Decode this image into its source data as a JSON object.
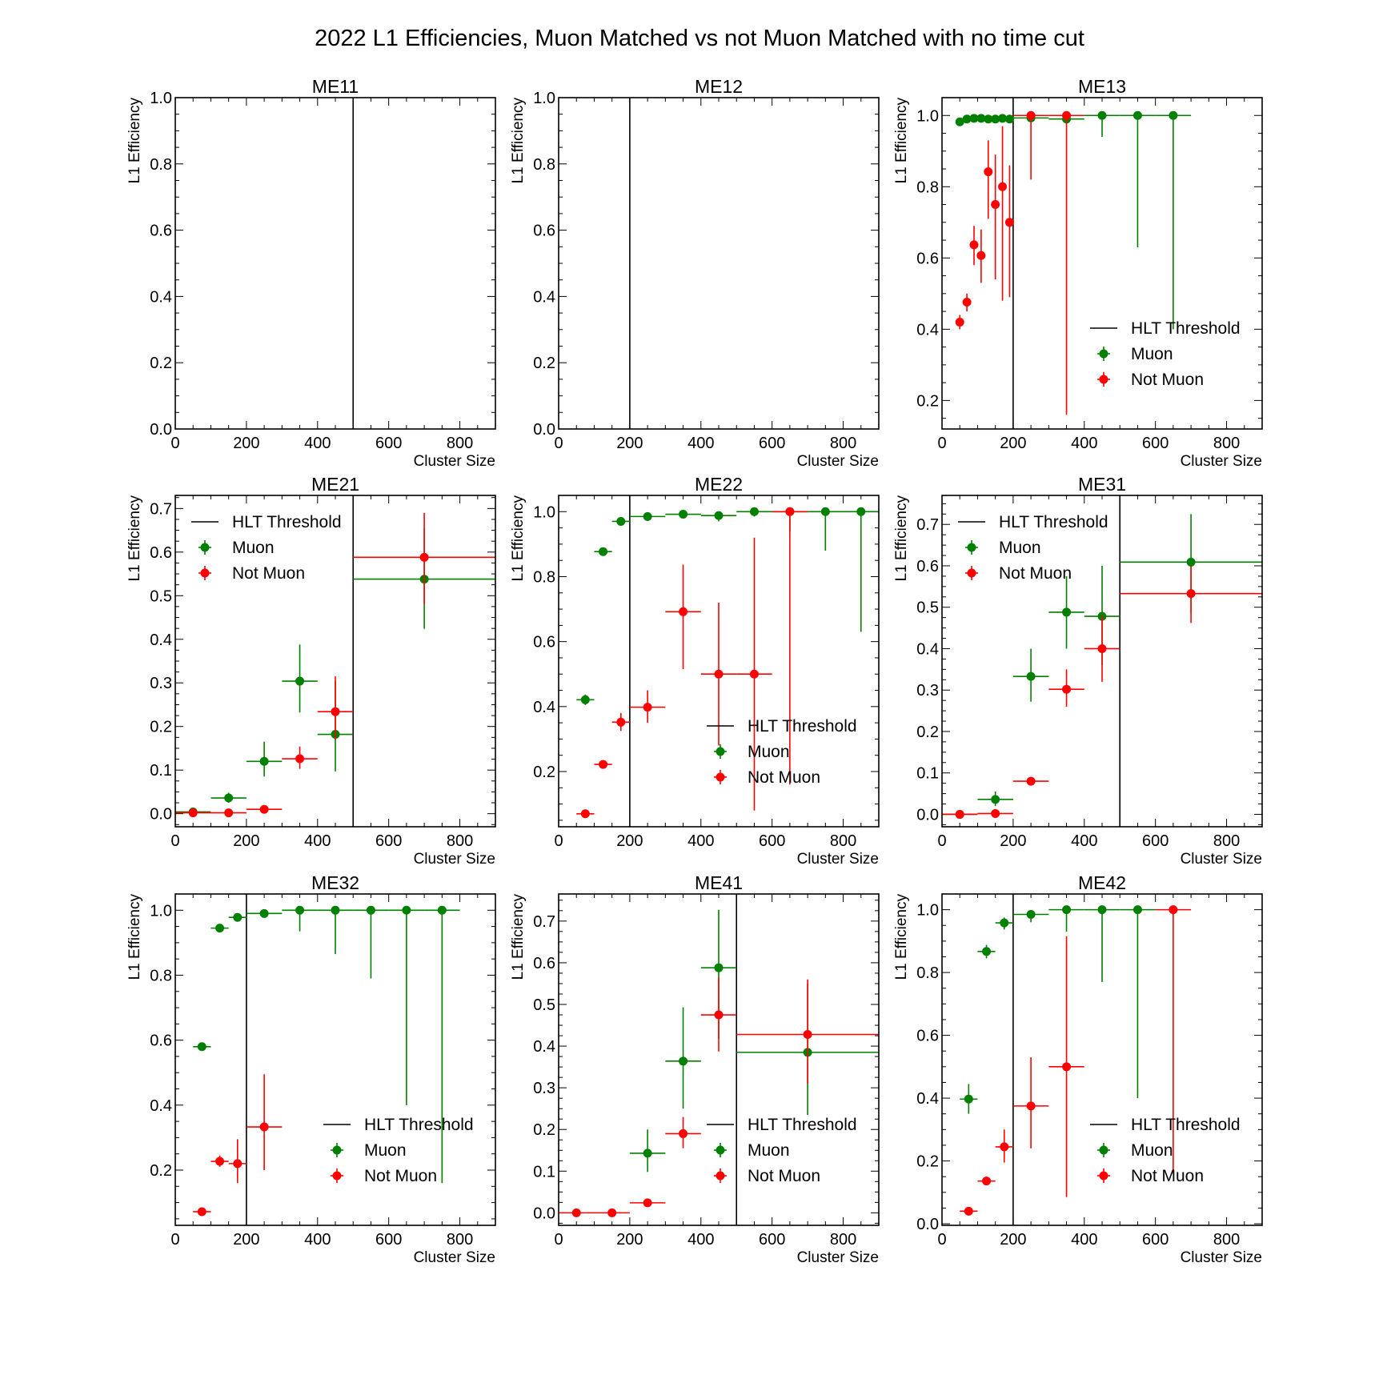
{
  "colors": {
    "muon": "#008000",
    "not_muon": "#ff0000",
    "threshold": "#000000"
  },
  "chart_data": {
    "type": "scatter",
    "title": "2022 L1 Efficiencies, Muon Matched vs not Muon Matched with no time cut",
    "xlabel": "Cluster Size",
    "ylabel": "L1 Efficiency",
    "legend": [
      "HLT Threshold",
      "Muon",
      "Not Muon"
    ],
    "panels": [
      {
        "title": "ME11",
        "threshold": 500,
        "xlim": [
          0,
          900
        ],
        "ylim": [
          0,
          1.0
        ],
        "yticks": [
          "0.0",
          "0.2",
          "0.4",
          "0.6",
          "0.8",
          "1.0"
        ],
        "xticks": [
          "0",
          "200",
          "400",
          "600",
          "800"
        ],
        "legend_loc": "none",
        "muon": [],
        "not_muon": []
      },
      {
        "title": "ME12",
        "threshold": 200,
        "xlim": [
          0,
          900
        ],
        "ylim": [
          0,
          1.0
        ],
        "yticks": [
          "0.0",
          "0.2",
          "0.4",
          "0.6",
          "0.8",
          "1.0"
        ],
        "xticks": [
          "0",
          "200",
          "400",
          "600",
          "800"
        ],
        "legend_loc": "none",
        "muon": [],
        "not_muon": []
      },
      {
        "title": "ME13",
        "threshold": 200,
        "xlim": [
          0,
          900
        ],
        "ylim": [
          0.12,
          1.05
        ],
        "yticks": [
          "0.2",
          "0.4",
          "0.6",
          "0.8",
          "1.0"
        ],
        "xticks": [
          "0",
          "200",
          "400",
          "600",
          "800"
        ],
        "legend_loc": "lower right",
        "muon": [
          {
            "x": 50,
            "xerr": 5,
            "y": 0.982,
            "ylo": 0.975,
            "yhi": 0.988
          },
          {
            "x": 70,
            "xerr": 5,
            "y": 0.99,
            "ylo": 0.985,
            "yhi": 0.994
          },
          {
            "x": 90,
            "xerr": 5,
            "y": 0.992,
            "ylo": 0.987,
            "yhi": 0.996
          },
          {
            "x": 110,
            "xerr": 5,
            "y": 0.992,
            "ylo": 0.986,
            "yhi": 0.996
          },
          {
            "x": 130,
            "xerr": 5,
            "y": 0.99,
            "ylo": 0.984,
            "yhi": 0.995
          },
          {
            "x": 150,
            "xerr": 5,
            "y": 0.99,
            "ylo": 0.983,
            "yhi": 0.995
          },
          {
            "x": 170,
            "xerr": 5,
            "y": 0.992,
            "ylo": 0.985,
            "yhi": 0.996
          },
          {
            "x": 190,
            "xerr": 5,
            "y": 0.99,
            "ylo": 0.982,
            "yhi": 0.995
          },
          {
            "x": 250,
            "xerr": 50,
            "y": 0.993,
            "ylo": 0.985,
            "yhi": 0.997
          },
          {
            "x": 350,
            "xerr": 50,
            "y": 0.99,
            "ylo": 0.975,
            "yhi": 0.996
          },
          {
            "x": 450,
            "xerr": 50,
            "y": 1.0,
            "ylo": 0.94,
            "yhi": 1.0
          },
          {
            "x": 550,
            "xerr": 50,
            "y": 1.0,
            "ylo": 0.63,
            "yhi": 1.0
          },
          {
            "x": 650,
            "xerr": 50,
            "y": 1.0,
            "ylo": 0.4,
            "yhi": 1.0
          }
        ],
        "not_muon": [
          {
            "x": 50,
            "xerr": 5,
            "y": 0.42,
            "ylo": 0.4,
            "yhi": 0.44
          },
          {
            "x": 70,
            "xerr": 5,
            "y": 0.476,
            "ylo": 0.45,
            "yhi": 0.5
          },
          {
            "x": 90,
            "xerr": 5,
            "y": 0.637,
            "ylo": 0.58,
            "yhi": 0.69
          },
          {
            "x": 110,
            "xerr": 5,
            "y": 0.607,
            "ylo": 0.53,
            "yhi": 0.68
          },
          {
            "x": 130,
            "xerr": 5,
            "y": 0.842,
            "ylo": 0.71,
            "yhi": 0.93
          },
          {
            "x": 150,
            "xerr": 5,
            "y": 0.75,
            "ylo": 0.54,
            "yhi": 0.89
          },
          {
            "x": 170,
            "xerr": 5,
            "y": 0.8,
            "ylo": 0.48,
            "yhi": 0.97
          },
          {
            "x": 190,
            "xerr": 5,
            "y": 0.7,
            "ylo": 0.49,
            "yhi": 0.86
          },
          {
            "x": 250,
            "xerr": 50,
            "y": 1.0,
            "ylo": 0.82,
            "yhi": 1.0
          },
          {
            "x": 350,
            "xerr": 50,
            "y": 1.0,
            "ylo": 0.16,
            "yhi": 1.0
          }
        ]
      },
      {
        "title": "ME21",
        "threshold": 500,
        "xlim": [
          0,
          900
        ],
        "ylim": [
          -0.03,
          0.73
        ],
        "yticks": [
          "0.0",
          "0.1",
          "0.2",
          "0.3",
          "0.4",
          "0.5",
          "0.6",
          "0.7"
        ],
        "xticks": [
          "0",
          "200",
          "400",
          "600",
          "800"
        ],
        "legend_loc": "upper left",
        "muon": [
          {
            "x": 50,
            "xerr": 50,
            "y": 0.004,
            "ylo": 0.001,
            "yhi": 0.008
          },
          {
            "x": 150,
            "xerr": 50,
            "y": 0.036,
            "ylo": 0.025,
            "yhi": 0.048
          },
          {
            "x": 250,
            "xerr": 50,
            "y": 0.12,
            "ylo": 0.085,
            "yhi": 0.165
          },
          {
            "x": 350,
            "xerr": 50,
            "y": 0.304,
            "ylo": 0.232,
            "yhi": 0.388
          },
          {
            "x": 450,
            "xerr": 50,
            "y": 0.182,
            "ylo": 0.097,
            "yhi": 0.305
          },
          {
            "x": 700,
            "xerr": 200,
            "y": 0.538,
            "ylo": 0.424,
            "yhi": 0.655
          }
        ],
        "not_muon": [
          {
            "x": 50,
            "xerr": 50,
            "y": 0.002,
            "ylo": 0.0,
            "yhi": 0.005
          },
          {
            "x": 150,
            "xerr": 50,
            "y": 0.002,
            "ylo": 0.0,
            "yhi": 0.005
          },
          {
            "x": 250,
            "xerr": 50,
            "y": 0.01,
            "ylo": 0.005,
            "yhi": 0.017
          },
          {
            "x": 350,
            "xerr": 50,
            "y": 0.126,
            "ylo": 0.103,
            "yhi": 0.154
          },
          {
            "x": 450,
            "xerr": 50,
            "y": 0.234,
            "ylo": 0.17,
            "yhi": 0.315
          },
          {
            "x": 700,
            "xerr": 200,
            "y": 0.588,
            "ylo": 0.48,
            "yhi": 0.69
          }
        ]
      },
      {
        "title": "ME22",
        "threshold": 200,
        "xlim": [
          0,
          900
        ],
        "ylim": [
          0.03,
          1.05
        ],
        "yticks": [
          "0.2",
          "0.4",
          "0.6",
          "0.8",
          "1.0"
        ],
        "xticks": [
          "0",
          "200",
          "400",
          "600",
          "800"
        ],
        "legend_loc": "lower right",
        "muon": [
          {
            "x": 75,
            "xerr": 25,
            "y": 0.421,
            "ylo": 0.405,
            "yhi": 0.437
          },
          {
            "x": 125,
            "xerr": 25,
            "y": 0.877,
            "ylo": 0.865,
            "yhi": 0.889
          },
          {
            "x": 175,
            "xerr": 25,
            "y": 0.97,
            "ylo": 0.96,
            "yhi": 0.978
          },
          {
            "x": 250,
            "xerr": 50,
            "y": 0.985,
            "ylo": 0.978,
            "yhi": 0.991
          },
          {
            "x": 350,
            "xerr": 50,
            "y": 0.992,
            "ylo": 0.982,
            "yhi": 0.997
          },
          {
            "x": 450,
            "xerr": 50,
            "y": 0.988,
            "ylo": 0.97,
            "yhi": 0.996
          },
          {
            "x": 550,
            "xerr": 50,
            "y": 1.0,
            "ylo": 0.985,
            "yhi": 1.0
          },
          {
            "x": 650,
            "xerr": 50,
            "y": 1.0,
            "ylo": 0.94,
            "yhi": 1.0
          },
          {
            "x": 750,
            "xerr": 50,
            "y": 1.0,
            "ylo": 0.88,
            "yhi": 1.0
          },
          {
            "x": 850,
            "xerr": 50,
            "y": 1.0,
            "ylo": 0.63,
            "yhi": 1.0
          }
        ],
        "not_muon": [
          {
            "x": 75,
            "xerr": 25,
            "y": 0.07,
            "ylo": 0.062,
            "yhi": 0.08
          },
          {
            "x": 125,
            "xerr": 25,
            "y": 0.222,
            "ylo": 0.21,
            "yhi": 0.235
          },
          {
            "x": 175,
            "xerr": 25,
            "y": 0.352,
            "ylo": 0.325,
            "yhi": 0.38
          },
          {
            "x": 250,
            "xerr": 50,
            "y": 0.398,
            "ylo": 0.35,
            "yhi": 0.45
          },
          {
            "x": 350,
            "xerr": 50,
            "y": 0.692,
            "ylo": 0.515,
            "yhi": 0.837
          },
          {
            "x": 450,
            "xerr": 50,
            "y": 0.5,
            "ylo": 0.28,
            "yhi": 0.72
          },
          {
            "x": 550,
            "xerr": 50,
            "y": 0.5,
            "ylo": 0.08,
            "yhi": 0.92
          },
          {
            "x": 650,
            "xerr": 50,
            "y": 1.0,
            "ylo": 0.16,
            "yhi": 1.0
          }
        ]
      },
      {
        "title": "ME31",
        "threshold": 500,
        "xlim": [
          0,
          900
        ],
        "ylim": [
          -0.03,
          0.77
        ],
        "yticks": [
          "0.0",
          "0.1",
          "0.2",
          "0.3",
          "0.4",
          "0.5",
          "0.6",
          "0.7"
        ],
        "xticks": [
          "0",
          "200",
          "400",
          "600",
          "800"
        ],
        "legend_loc": "upper left",
        "muon": [
          {
            "x": 50,
            "xerr": 50,
            "y": 0.0,
            "ylo": 0.0,
            "yhi": 0.003
          },
          {
            "x": 150,
            "xerr": 50,
            "y": 0.036,
            "ylo": 0.02,
            "yhi": 0.055
          },
          {
            "x": 250,
            "xerr": 50,
            "y": 0.333,
            "ylo": 0.272,
            "yhi": 0.4
          },
          {
            "x": 350,
            "xerr": 50,
            "y": 0.488,
            "ylo": 0.4,
            "yhi": 0.575
          },
          {
            "x": 450,
            "xerr": 50,
            "y": 0.478,
            "ylo": 0.36,
            "yhi": 0.6
          },
          {
            "x": 700,
            "xerr": 200,
            "y": 0.609,
            "ylo": 0.485,
            "yhi": 0.725
          }
        ],
        "not_muon": [
          {
            "x": 50,
            "xerr": 50,
            "y": 0.0,
            "ylo": 0.0,
            "yhi": 0.002
          },
          {
            "x": 150,
            "xerr": 50,
            "y": 0.002,
            "ylo": 0.0,
            "yhi": 0.005
          },
          {
            "x": 250,
            "xerr": 50,
            "y": 0.08,
            "ylo": 0.072,
            "yhi": 0.09
          },
          {
            "x": 350,
            "xerr": 50,
            "y": 0.302,
            "ylo": 0.26,
            "yhi": 0.35
          },
          {
            "x": 450,
            "xerr": 50,
            "y": 0.4,
            "ylo": 0.32,
            "yhi": 0.48
          },
          {
            "x": 700,
            "xerr": 200,
            "y": 0.533,
            "ylo": 0.462,
            "yhi": 0.6
          }
        ]
      },
      {
        "title": "ME32",
        "threshold": 200,
        "xlim": [
          0,
          900
        ],
        "ylim": [
          0.03,
          1.05
        ],
        "yticks": [
          "0.2",
          "0.4",
          "0.6",
          "0.8",
          "1.0"
        ],
        "xticks": [
          "0",
          "200",
          "400",
          "600",
          "800"
        ],
        "legend_loc": "lower right",
        "muon": [
          {
            "x": 75,
            "xerr": 25,
            "y": 0.58,
            "ylo": 0.57,
            "yhi": 0.59
          },
          {
            "x": 125,
            "xerr": 25,
            "y": 0.945,
            "ylo": 0.938,
            "yhi": 0.952
          },
          {
            "x": 175,
            "xerr": 25,
            "y": 0.978,
            "ylo": 0.97,
            "yhi": 0.985
          },
          {
            "x": 250,
            "xerr": 50,
            "y": 0.99,
            "ylo": 0.982,
            "yhi": 0.995
          },
          {
            "x": 350,
            "xerr": 50,
            "y": 1.0,
            "ylo": 0.935,
            "yhi": 1.0
          },
          {
            "x": 450,
            "xerr": 50,
            "y": 1.0,
            "ylo": 0.865,
            "yhi": 1.0
          },
          {
            "x": 550,
            "xerr": 50,
            "y": 1.0,
            "ylo": 0.79,
            "yhi": 1.0
          },
          {
            "x": 650,
            "xerr": 50,
            "y": 1.0,
            "ylo": 0.4,
            "yhi": 1.0
          },
          {
            "x": 750,
            "xerr": 50,
            "y": 1.0,
            "ylo": 0.16,
            "yhi": 1.0
          }
        ],
        "not_muon": [
          {
            "x": 75,
            "xerr": 25,
            "y": 0.072,
            "ylo": 0.067,
            "yhi": 0.078
          },
          {
            "x": 125,
            "xerr": 25,
            "y": 0.227,
            "ylo": 0.21,
            "yhi": 0.245
          },
          {
            "x": 175,
            "xerr": 25,
            "y": 0.22,
            "ylo": 0.16,
            "yhi": 0.295
          },
          {
            "x": 250,
            "xerr": 50,
            "y": 0.333,
            "ylo": 0.2,
            "yhi": 0.495
          }
        ]
      },
      {
        "title": "ME41",
        "threshold": 500,
        "xlim": [
          0,
          900
        ],
        "ylim": [
          -0.03,
          0.765
        ],
        "yticks": [
          "0.0",
          "0.1",
          "0.2",
          "0.3",
          "0.4",
          "0.5",
          "0.6",
          "0.7"
        ],
        "xticks": [
          "0",
          "200",
          "400",
          "600",
          "800"
        ],
        "legend_loc": "lower right",
        "muon": [
          {
            "x": 250,
            "xerr": 50,
            "y": 0.143,
            "ylo": 0.098,
            "yhi": 0.2
          },
          {
            "x": 350,
            "xerr": 50,
            "y": 0.364,
            "ylo": 0.25,
            "yhi": 0.493
          },
          {
            "x": 450,
            "xerr": 50,
            "y": 0.588,
            "ylo": 0.418,
            "yhi": 0.727
          },
          {
            "x": 700,
            "xerr": 200,
            "y": 0.385,
            "ylo": 0.235,
            "yhi": 0.55
          }
        ],
        "not_muon": [
          {
            "x": 50,
            "xerr": 50,
            "y": 0.0,
            "ylo": 0.0,
            "yhi": 0.003
          },
          {
            "x": 150,
            "xerr": 50,
            "y": 0.0,
            "ylo": 0.0,
            "yhi": 0.003
          },
          {
            "x": 250,
            "xerr": 50,
            "y": 0.024,
            "ylo": 0.018,
            "yhi": 0.03
          },
          {
            "x": 350,
            "xerr": 50,
            "y": 0.19,
            "ylo": 0.155,
            "yhi": 0.23
          },
          {
            "x": 450,
            "xerr": 50,
            "y": 0.475,
            "ylo": 0.387,
            "yhi": 0.565
          },
          {
            "x": 700,
            "xerr": 200,
            "y": 0.428,
            "ylo": 0.31,
            "yhi": 0.56
          }
        ]
      },
      {
        "title": "ME42",
        "threshold": 200,
        "xlim": [
          0,
          900
        ],
        "ylim": [
          -0.005,
          1.05
        ],
        "yticks": [
          "0.0",
          "0.2",
          "0.4",
          "0.6",
          "0.8",
          "1.0"
        ],
        "xticks": [
          "0",
          "200",
          "400",
          "600",
          "800"
        ],
        "legend_loc": "lower right",
        "muon": [
          {
            "x": 75,
            "xerr": 25,
            "y": 0.397,
            "ylo": 0.35,
            "yhi": 0.445
          },
          {
            "x": 125,
            "xerr": 25,
            "y": 0.867,
            "ylo": 0.845,
            "yhi": 0.888
          },
          {
            "x": 175,
            "xerr": 25,
            "y": 0.958,
            "ylo": 0.937,
            "yhi": 0.975
          },
          {
            "x": 250,
            "xerr": 50,
            "y": 0.985,
            "ylo": 0.96,
            "yhi": 0.996
          },
          {
            "x": 350,
            "xerr": 50,
            "y": 1.0,
            "ylo": 0.93,
            "yhi": 1.0
          },
          {
            "x": 450,
            "xerr": 50,
            "y": 1.0,
            "ylo": 0.77,
            "yhi": 1.0
          },
          {
            "x": 550,
            "xerr": 50,
            "y": 1.0,
            "ylo": 0.4,
            "yhi": 1.0
          }
        ],
        "not_muon": [
          {
            "x": 75,
            "xerr": 25,
            "y": 0.04,
            "ylo": 0.033,
            "yhi": 0.047
          },
          {
            "x": 125,
            "xerr": 25,
            "y": 0.136,
            "ylo": 0.123,
            "yhi": 0.15
          },
          {
            "x": 175,
            "xerr": 25,
            "y": 0.245,
            "ylo": 0.195,
            "yhi": 0.3
          },
          {
            "x": 250,
            "xerr": 50,
            "y": 0.375,
            "ylo": 0.24,
            "yhi": 0.53
          },
          {
            "x": 350,
            "xerr": 50,
            "y": 0.5,
            "ylo": 0.085,
            "yhi": 0.915
          },
          {
            "x": 650,
            "xerr": 50,
            "y": 1.0,
            "ylo": 0.16,
            "yhi": 1.0
          }
        ]
      }
    ]
  }
}
